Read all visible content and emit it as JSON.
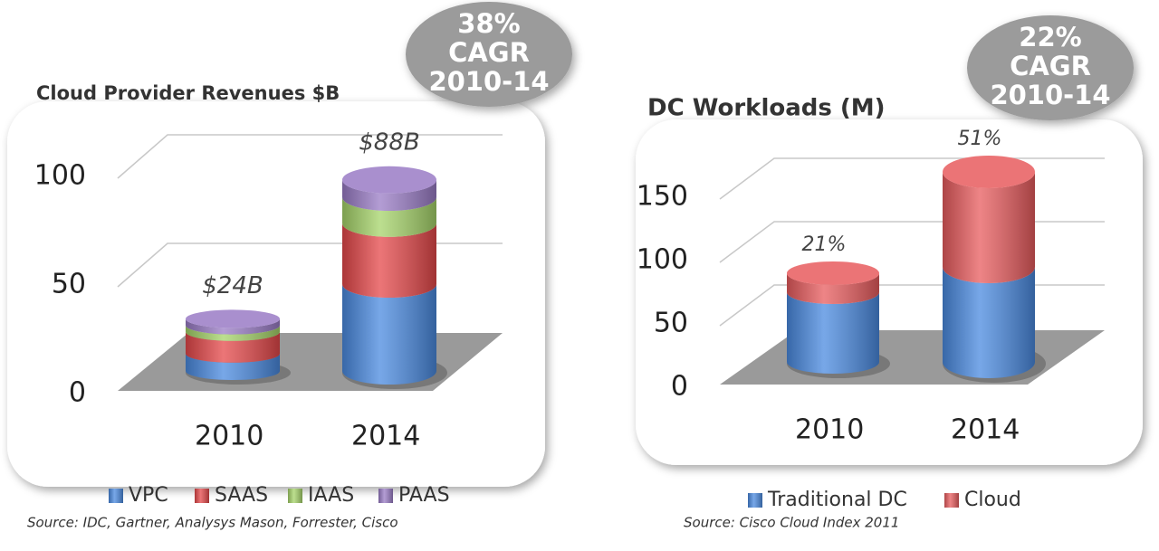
{
  "chart_data": [
    {
      "type": "bar3d-stacked",
      "title": "Cloud Provider Revenues $B",
      "categories": [
        "2010",
        "2014"
      ],
      "series": [
        {
          "name": "VPC",
          "color": "#4a8ae0",
          "values": [
            8,
            40
          ]
        },
        {
          "name": "SAAS",
          "color": "#e5484a",
          "values": [
            10,
            28
          ]
        },
        {
          "name": "IAAS",
          "color": "#a6d46a",
          "values": [
            3,
            12
          ]
        },
        {
          "name": "PAAS",
          "color": "#9a7cc6",
          "values": [
            3,
            8
          ]
        }
      ],
      "totals": {
        "values": [
          24,
          88
        ],
        "value_labels": [
          "$24B",
          "$88B"
        ]
      },
      "ylim": [
        0,
        100
      ],
      "yticks": [
        0,
        50,
        100
      ],
      "grid": true,
      "badge": [
        "38%",
        "CAGR",
        "2010-14"
      ],
      "source": "Source: IDC, Gartner, Analysys Mason, Forrester, Cisco"
    },
    {
      "type": "bar3d-stacked",
      "title": "DC Workloads (M)",
      "categories": [
        "2010",
        "2014"
      ],
      "series": [
        {
          "name": "Traditional DC",
          "color": "#4a8ae0",
          "values": [
            55,
            75
          ]
        },
        {
          "name": "Cloud",
          "color": "#e85c5e",
          "values": [
            15,
            75
          ]
        }
      ],
      "share": {
        "values": [
          21,
          51
        ],
        "value_labels": [
          "21%",
          "51%"
        ]
      },
      "ylim": [
        0,
        150
      ],
      "yticks": [
        0,
        50,
        100,
        150
      ],
      "grid": true,
      "badge": [
        "22%",
        "CAGR",
        "2010-14"
      ],
      "source": "Source: Cisco Cloud Index 2011"
    }
  ]
}
